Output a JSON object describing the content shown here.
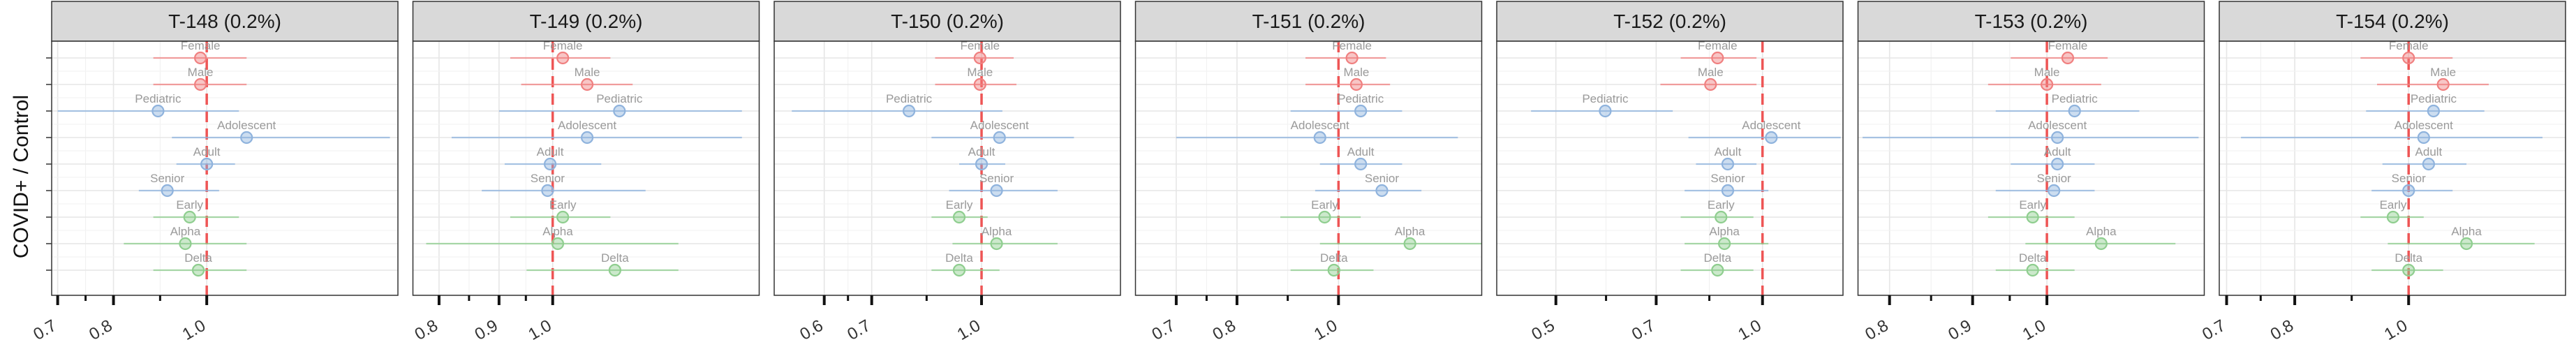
{
  "chart_data": {
    "type": "scatter",
    "ylabel": "COVID+ / Control",
    "x_scale": "log",
    "reference_value": 1.0,
    "grid": true,
    "legend": "none",
    "colors": {
      "sex": "#f08080",
      "age": "#8fb3dd",
      "variant": "#8fce8f",
      "reference": "#ee5555"
    },
    "row_order": [
      "Female",
      "Male",
      "Pediatric",
      "Adolescent",
      "Adult",
      "Senior",
      "Early",
      "Alpha",
      "Delta"
    ],
    "row_groups": {
      "Female": "sex",
      "Male": "sex",
      "Pediatric": "age",
      "Adolescent": "age",
      "Adult": "age",
      "Senior": "age",
      "Early": "variant",
      "Alpha": "variant",
      "Delta": "variant"
    },
    "panels": [
      {
        "title": "T-148 (0.2%)",
        "xlim": [
          0.69,
          1.58
        ],
        "ticks": [
          0.7,
          0.8,
          1.0
        ],
        "tick_labels": [
          "0.7",
          "0.8",
          "1.0"
        ],
        "points": [
          {
            "label": "Female",
            "value": 0.985,
            "lower": 0.88,
            "upper": 1.1
          },
          {
            "label": "Male",
            "value": 0.985,
            "lower": 0.88,
            "upper": 1.1
          },
          {
            "label": "Pediatric",
            "value": 0.89,
            "lower": 0.7,
            "upper": 1.08
          },
          {
            "label": "Adolescent",
            "value": 1.1,
            "lower": 0.92,
            "upper": 1.55
          },
          {
            "label": "Adult",
            "value": 1.0,
            "lower": 0.93,
            "upper": 1.07
          },
          {
            "label": "Senior",
            "value": 0.91,
            "lower": 0.85,
            "upper": 1.03
          },
          {
            "label": "Early",
            "value": 0.96,
            "lower": 0.88,
            "upper": 1.08
          },
          {
            "label": "Alpha",
            "value": 0.95,
            "lower": 0.82,
            "upper": 1.1
          },
          {
            "label": "Delta",
            "value": 0.98,
            "lower": 0.88,
            "upper": 1.1
          }
        ]
      },
      {
        "title": "T-149 (0.2%)",
        "xlim": [
          0.76,
          1.5
        ],
        "ticks": [
          0.8,
          0.9,
          1.0
        ],
        "tick_labels": [
          "0.8",
          "0.9",
          "1.0"
        ],
        "points": [
          {
            "label": "Female",
            "value": 1.02,
            "lower": 0.92,
            "upper": 1.12
          },
          {
            "label": "Male",
            "value": 1.07,
            "lower": 0.94,
            "upper": 1.17
          },
          {
            "label": "Pediatric",
            "value": 1.14,
            "lower": 0.9,
            "upper": 1.45
          },
          {
            "label": "Adolescent",
            "value": 1.07,
            "lower": 0.82,
            "upper": 1.45
          },
          {
            "label": "Adult",
            "value": 0.995,
            "lower": 0.91,
            "upper": 1.1
          },
          {
            "label": "Senior",
            "value": 0.99,
            "lower": 0.87,
            "upper": 1.2
          },
          {
            "label": "Early",
            "value": 1.02,
            "lower": 0.92,
            "upper": 1.12
          },
          {
            "label": "Alpha",
            "value": 1.01,
            "lower": 0.78,
            "upper": 1.28
          },
          {
            "label": "Delta",
            "value": 1.13,
            "lower": 0.95,
            "upper": 1.28
          }
        ]
      },
      {
        "title": "T-150 (0.2%)",
        "xlim": [
          0.51,
          1.57
        ],
        "ticks": [
          0.6,
          0.7,
          1.0
        ],
        "tick_labels": [
          "0.6",
          "0.7",
          "1.0"
        ],
        "points": [
          {
            "label": "Female",
            "value": 0.995,
            "lower": 0.86,
            "upper": 1.11
          },
          {
            "label": "Male",
            "value": 0.995,
            "lower": 0.86,
            "upper": 1.12
          },
          {
            "label": "Pediatric",
            "value": 0.79,
            "lower": 0.54,
            "upper": 1.07
          },
          {
            "label": "Adolescent",
            "value": 1.06,
            "lower": 0.85,
            "upper": 1.35
          },
          {
            "label": "Adult",
            "value": 1.0,
            "lower": 0.93,
            "upper": 1.08
          },
          {
            "label": "Senior",
            "value": 1.05,
            "lower": 0.9,
            "upper": 1.28
          },
          {
            "label": "Early",
            "value": 0.93,
            "lower": 0.85,
            "upper": 1.02
          },
          {
            "label": "Alpha",
            "value": 1.05,
            "lower": 0.91,
            "upper": 1.28
          },
          {
            "label": "Delta",
            "value": 0.93,
            "lower": 0.85,
            "upper": 1.06
          }
        ]
      },
      {
        "title": "T-151 (0.2%)",
        "xlim": [
          0.64,
          1.37
        ],
        "ticks": [
          0.7,
          0.8,
          1.0
        ],
        "tick_labels": [
          "0.7",
          "0.8",
          "1.0"
        ],
        "points": [
          {
            "label": "Female",
            "value": 1.03,
            "lower": 0.93,
            "upper": 1.11
          },
          {
            "label": "Male",
            "value": 1.04,
            "lower": 0.93,
            "upper": 1.12
          },
          {
            "label": "Pediatric",
            "value": 1.05,
            "lower": 0.9,
            "upper": 1.15
          },
          {
            "label": "Adolescent",
            "value": 0.96,
            "lower": 0.7,
            "upper": 1.3
          },
          {
            "label": "Adult",
            "value": 1.05,
            "lower": 0.96,
            "upper": 1.15
          },
          {
            "label": "Senior",
            "value": 1.1,
            "lower": 0.95,
            "upper": 1.2
          },
          {
            "label": "Early",
            "value": 0.97,
            "lower": 0.88,
            "upper": 1.05
          },
          {
            "label": "Alpha",
            "value": 1.17,
            "lower": 0.96,
            "upper": 1.37
          },
          {
            "label": "Delta",
            "value": 0.99,
            "lower": 0.9,
            "upper": 1.08
          }
        ]
      },
      {
        "title": "T-152 (0.2%)",
        "xlim": [
          0.41,
          1.31
        ],
        "ticks": [
          0.5,
          0.7,
          1.0
        ],
        "tick_labels": [
          "0.5",
          "0.7",
          "1.0"
        ],
        "points": [
          {
            "label": "Female",
            "value": 0.86,
            "lower": 0.76,
            "upper": 0.98
          },
          {
            "label": "Male",
            "value": 0.84,
            "lower": 0.71,
            "upper": 0.98
          },
          {
            "label": "Pediatric",
            "value": 0.59,
            "lower": 0.46,
            "upper": 0.74
          },
          {
            "label": "Adolescent",
            "value": 1.03,
            "lower": 0.78,
            "upper": 1.3
          },
          {
            "label": "Adult",
            "value": 0.89,
            "lower": 0.8,
            "upper": 0.98
          },
          {
            "label": "Senior",
            "value": 0.89,
            "lower": 0.77,
            "upper": 1.02
          },
          {
            "label": "Early",
            "value": 0.87,
            "lower": 0.76,
            "upper": 0.97
          },
          {
            "label": "Alpha",
            "value": 0.88,
            "lower": 0.77,
            "upper": 1.02
          },
          {
            "label": "Delta",
            "value": 0.86,
            "lower": 0.76,
            "upper": 0.97
          }
        ]
      },
      {
        "title": "T-153 (0.2%)",
        "xlim": [
          0.765,
          1.25
        ],
        "ticks": [
          0.8,
          0.9,
          1.0
        ],
        "tick_labels": [
          "0.8",
          "0.9",
          "1.0"
        ],
        "points": [
          {
            "label": "Female",
            "value": 1.03,
            "lower": 0.95,
            "upper": 1.09
          },
          {
            "label": "Male",
            "value": 1.0,
            "lower": 0.92,
            "upper": 1.08
          },
          {
            "label": "Pediatric",
            "value": 1.04,
            "lower": 0.93,
            "upper": 1.14
          },
          {
            "label": "Adolescent",
            "value": 1.015,
            "lower": 0.77,
            "upper": 1.24
          },
          {
            "label": "Adult",
            "value": 1.015,
            "lower": 0.95,
            "upper": 1.07
          },
          {
            "label": "Senior",
            "value": 1.01,
            "lower": 0.93,
            "upper": 1.07
          },
          {
            "label": "Early",
            "value": 0.98,
            "lower": 0.92,
            "upper": 1.04
          },
          {
            "label": "Alpha",
            "value": 1.08,
            "lower": 0.97,
            "upper": 1.2
          },
          {
            "label": "Delta",
            "value": 0.98,
            "lower": 0.93,
            "upper": 1.04
          }
        ]
      },
      {
        "title": "T-154 (0.2%)",
        "xlim": [
          0.69,
          1.36
        ],
        "ticks": [
          0.7,
          0.8,
          1.0
        ],
        "tick_labels": [
          "0.7",
          "0.8",
          "1.0"
        ],
        "points": [
          {
            "label": "Female",
            "value": 1.0,
            "lower": 0.91,
            "upper": 1.09
          },
          {
            "label": "Male",
            "value": 1.07,
            "lower": 0.94,
            "upper": 1.17
          },
          {
            "label": "Pediatric",
            "value": 1.05,
            "lower": 0.92,
            "upper": 1.16
          },
          {
            "label": "Adolescent",
            "value": 1.03,
            "lower": 0.72,
            "upper": 1.3
          },
          {
            "label": "Adult",
            "value": 1.04,
            "lower": 0.95,
            "upper": 1.12
          },
          {
            "label": "Senior",
            "value": 1.0,
            "lower": 0.93,
            "upper": 1.09
          },
          {
            "label": "Early",
            "value": 0.97,
            "lower": 0.91,
            "upper": 1.03
          },
          {
            "label": "Alpha",
            "value": 1.12,
            "lower": 0.96,
            "upper": 1.28
          },
          {
            "label": "Delta",
            "value": 1.0,
            "lower": 0.93,
            "upper": 1.07
          }
        ]
      }
    ]
  }
}
